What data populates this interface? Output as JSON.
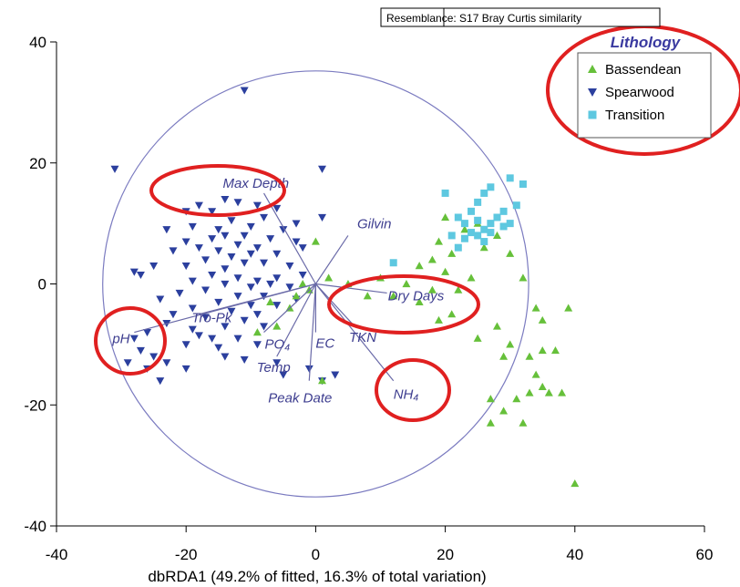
{
  "colors": {
    "bassendean": "#66c03a",
    "spearwood": "#2b3f9e",
    "transition": "#5ec8e0",
    "vector": "#6a6aa8",
    "circle": "#7b7bc0",
    "highlight": "#e02020"
  },
  "resemblance": "Resemblance: S17 Bray Curtis similarity",
  "legend": {
    "title": "Lithology",
    "placement": "top-right",
    "items": [
      "Bassendean",
      "Spearwood",
      "Transition"
    ]
  },
  "chart_data": {
    "type": "scatter",
    "xlabel": "dbRDA1 (49.2% of fitted, 16.3% of total variation)",
    "ylabel": "",
    "xlim": [
      -40,
      60
    ],
    "ylim": [
      -40,
      40
    ],
    "xticks": [
      -40,
      -20,
      0,
      20,
      40,
      60
    ],
    "yticks": [
      -40,
      -20,
      0,
      20,
      40
    ],
    "xtick_labels": [
      "-40",
      "-20",
      "0",
      "20",
      "40",
      "60"
    ],
    "ytick_labels": [
      "-40",
      "-20",
      "0",
      "20",
      "40"
    ],
    "grid": false,
    "circle": {
      "center": [
        0,
        0
      ],
      "radius": 34
    },
    "series": [
      {
        "name": "Spearwood",
        "marker": "triangle-down",
        "points": [
          [
            -11,
            32
          ],
          [
            -31,
            19
          ],
          [
            1,
            19
          ],
          [
            -14,
            14
          ],
          [
            -12,
            13.5
          ],
          [
            -18,
            13
          ],
          [
            -16,
            12
          ],
          [
            -9,
            13
          ],
          [
            -6,
            12.5
          ],
          [
            -20,
            12
          ],
          [
            -8,
            11
          ],
          [
            -3,
            10
          ],
          [
            1,
            11
          ],
          [
            -13,
            10.5
          ],
          [
            -19,
            9.5
          ],
          [
            -15,
            9
          ],
          [
            -10,
            9.5
          ],
          [
            -5,
            9
          ],
          [
            -23,
            9
          ],
          [
            -11,
            8
          ],
          [
            -16,
            7.5
          ],
          [
            -14,
            8
          ],
          [
            -7,
            7.5
          ],
          [
            -3,
            7
          ],
          [
            -20,
            7
          ],
          [
            -12,
            6.5
          ],
          [
            -9,
            6
          ],
          [
            -18,
            6
          ],
          [
            -15,
            5.5
          ],
          [
            -10,
            5
          ],
          [
            -6,
            5
          ],
          [
            -2,
            6
          ],
          [
            -22,
            5.5
          ],
          [
            -13,
            4.5
          ],
          [
            -17,
            4
          ],
          [
            -11,
            3.5
          ],
          [
            -8,
            3.5
          ],
          [
            -4,
            3
          ],
          [
            -20,
            3
          ],
          [
            -14,
            2.5
          ],
          [
            -25,
            3
          ],
          [
            -28,
            2
          ],
          [
            -27,
            1.5
          ],
          [
            -16,
            1.5
          ],
          [
            -12,
            1
          ],
          [
            -9,
            0.5
          ],
          [
            -6,
            1
          ],
          [
            -2,
            1.5
          ],
          [
            -19,
            0.5
          ],
          [
            -14,
            0
          ],
          [
            -10,
            -0.5
          ],
          [
            -7,
            0
          ],
          [
            -4,
            -0.5
          ],
          [
            -17,
            -1
          ],
          [
            -21,
            -1.5
          ],
          [
            -12,
            -2
          ],
          [
            -8,
            -2
          ],
          [
            -3,
            -2.5
          ],
          [
            -24,
            -2.5
          ],
          [
            -15,
            -3
          ],
          [
            -10,
            -3.5
          ],
          [
            -6,
            -3.5
          ],
          [
            -19,
            -4
          ],
          [
            -13,
            -4.5
          ],
          [
            -9,
            -5
          ],
          [
            -22,
            -5
          ],
          [
            -17,
            -5.5
          ],
          [
            -11,
            -6
          ],
          [
            -14,
            -7
          ],
          [
            -8,
            -7
          ],
          [
            -19,
            -7.5
          ],
          [
            -23,
            -6.5
          ],
          [
            -26,
            -8
          ],
          [
            -28,
            -9
          ],
          [
            -16,
            -9
          ],
          [
            -12,
            -9
          ],
          [
            -9,
            -10
          ],
          [
            -20,
            -10
          ],
          [
            -15,
            -10.5
          ],
          [
            -18,
            -8.5
          ],
          [
            -27,
            -11
          ],
          [
            -25,
            -12
          ],
          [
            -29,
            -13
          ],
          [
            -23,
            -13
          ],
          [
            -26,
            -14
          ],
          [
            -24,
            -16
          ],
          [
            -14,
            -12
          ],
          [
            -11,
            -12.5
          ],
          [
            -6,
            -13
          ],
          [
            -1,
            -14
          ],
          [
            -5,
            -15
          ],
          [
            3,
            -15
          ],
          [
            1,
            -16
          ],
          [
            -20,
            -14
          ]
        ]
      },
      {
        "name": "Bassendean",
        "marker": "triangle-up",
        "points": [
          [
            0,
            7
          ],
          [
            20,
            11
          ],
          [
            23,
            9
          ],
          [
            25,
            10
          ],
          [
            19,
            7
          ],
          [
            21,
            5
          ],
          [
            18,
            4
          ],
          [
            26,
            6
          ],
          [
            28,
            8
          ],
          [
            30,
            5
          ],
          [
            16,
            3
          ],
          [
            20,
            2
          ],
          [
            24,
            1
          ],
          [
            32,
            1
          ],
          [
            14,
            0
          ],
          [
            18,
            -1
          ],
          [
            22,
            -1
          ],
          [
            10,
            1
          ],
          [
            8,
            -2
          ],
          [
            12,
            -2
          ],
          [
            16,
            -3
          ],
          [
            21,
            -5
          ],
          [
            19,
            -6
          ],
          [
            28,
            -7
          ],
          [
            25,
            -9
          ],
          [
            30,
            -10
          ],
          [
            34,
            -4
          ],
          [
            35,
            -6
          ],
          [
            39,
            -4
          ],
          [
            29,
            -12
          ],
          [
            33,
            -12
          ],
          [
            35,
            -11
          ],
          [
            37,
            -11
          ],
          [
            34,
            -15
          ],
          [
            36,
            -18
          ],
          [
            35,
            -17
          ],
          [
            33,
            -18
          ],
          [
            38,
            -18
          ],
          [
            27,
            -19
          ],
          [
            29,
            -21
          ],
          [
            27,
            -23
          ],
          [
            32,
            -23
          ],
          [
            31,
            -19
          ],
          [
            40,
            -33
          ],
          [
            -9,
            -8
          ],
          [
            -6,
            -7
          ],
          [
            -4,
            -4
          ],
          [
            -7,
            -3
          ],
          [
            -3,
            -2
          ],
          [
            -2,
            0
          ],
          [
            2,
            1
          ],
          [
            5,
            0
          ],
          [
            -1,
            -1
          ],
          [
            1,
            -16
          ]
        ]
      },
      {
        "name": "Transition",
        "marker": "square",
        "points": [
          [
            12,
            3.5
          ],
          [
            20,
            15
          ],
          [
            25,
            13.5
          ],
          [
            26,
            15
          ],
          [
            27,
            16
          ],
          [
            30,
            17.5
          ],
          [
            32,
            16.5
          ],
          [
            24,
            12
          ],
          [
            22,
            11
          ],
          [
            23,
            10
          ],
          [
            25,
            10.5
          ],
          [
            27,
            10
          ],
          [
            28,
            11
          ],
          [
            29,
            12
          ],
          [
            31,
            13
          ],
          [
            26,
            9
          ],
          [
            24,
            8.5
          ],
          [
            25,
            8
          ],
          [
            27,
            8.5
          ],
          [
            23,
            7.5
          ],
          [
            26,
            7
          ],
          [
            29,
            9.5
          ],
          [
            30,
            10
          ],
          [
            22,
            6
          ],
          [
            21,
            8
          ]
        ]
      }
    ],
    "vectors": [
      {
        "label": "Max Depth",
        "end": [
          -8,
          15
        ]
      },
      {
        "label": "Gilvin",
        "end": [
          5,
          8
        ]
      },
      {
        "label": "Dry Days",
        "end": [
          11,
          -1.5
        ]
      },
      {
        "label": "pH",
        "end": [
          -28,
          -8
        ]
      },
      {
        "label": "Tro-Pk",
        "end": [
          -18,
          -5
        ]
      },
      {
        "label": "PO₄",
        "end": [
          -8,
          -8
        ]
      },
      {
        "label": "Temp",
        "end": [
          -6,
          -12
        ]
      },
      {
        "label": "EC",
        "end": [
          0,
          -8
        ]
      },
      {
        "label": "TKN",
        "end": [
          6,
          -7
        ]
      },
      {
        "label": "Peak Date",
        "end": [
          -1,
          -16
        ]
      },
      {
        "label": "NH₄",
        "end": [
          12,
          -16
        ]
      }
    ]
  }
}
